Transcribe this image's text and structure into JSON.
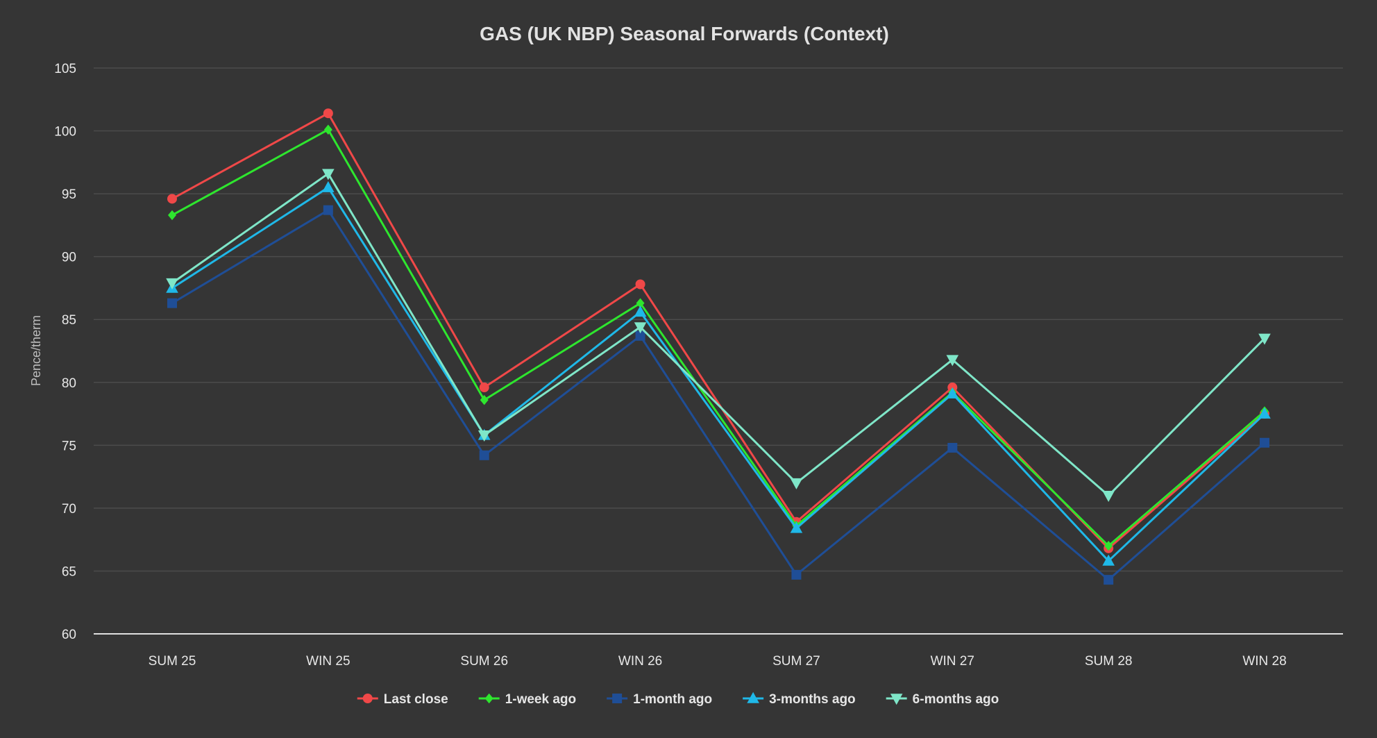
{
  "chart_data": {
    "type": "line",
    "title": "GAS (UK NBP) Seasonal Forwards (Context)",
    "xlabel": "",
    "ylabel": "Pence/therm",
    "ylim": [
      60,
      105
    ],
    "yticks": [
      "60",
      "65",
      "70",
      "75",
      "80",
      "85",
      "90",
      "95",
      "100",
      "105"
    ],
    "grid": true,
    "legend_position": "bottom",
    "categories": [
      "SUM 25",
      "WIN 25",
      "SUM 26",
      "WIN 26",
      "SUM 27",
      "WIN 27",
      "SUM 28",
      "WIN 28"
    ],
    "series": [
      {
        "name": "Last close",
        "color": "#f04848",
        "marker": "circle",
        "values": [
          94.6,
          101.4,
          79.6,
          87.8,
          68.9,
          79.6,
          66.8,
          77.5
        ]
      },
      {
        "name": "1-week ago",
        "color": "#2ee62e",
        "marker": "diamond",
        "values": [
          93.3,
          100.1,
          78.6,
          86.3,
          68.6,
          79.2,
          67.0,
          77.7
        ]
      },
      {
        "name": "1-month ago",
        "color": "#1f4e96",
        "marker": "square",
        "values": [
          86.3,
          93.7,
          74.2,
          83.7,
          64.7,
          74.8,
          64.3,
          75.2
        ]
      },
      {
        "name": "3-months ago",
        "color": "#1fb8e8",
        "marker": "triangle-up",
        "values": [
          87.5,
          95.5,
          75.8,
          85.6,
          68.4,
          79.1,
          65.8,
          77.5
        ]
      },
      {
        "name": "6-months ago",
        "color": "#7fe6c8",
        "marker": "triangle-down",
        "values": [
          87.9,
          96.6,
          75.8,
          84.4,
          72.0,
          81.8,
          71.0,
          83.5
        ]
      }
    ]
  }
}
